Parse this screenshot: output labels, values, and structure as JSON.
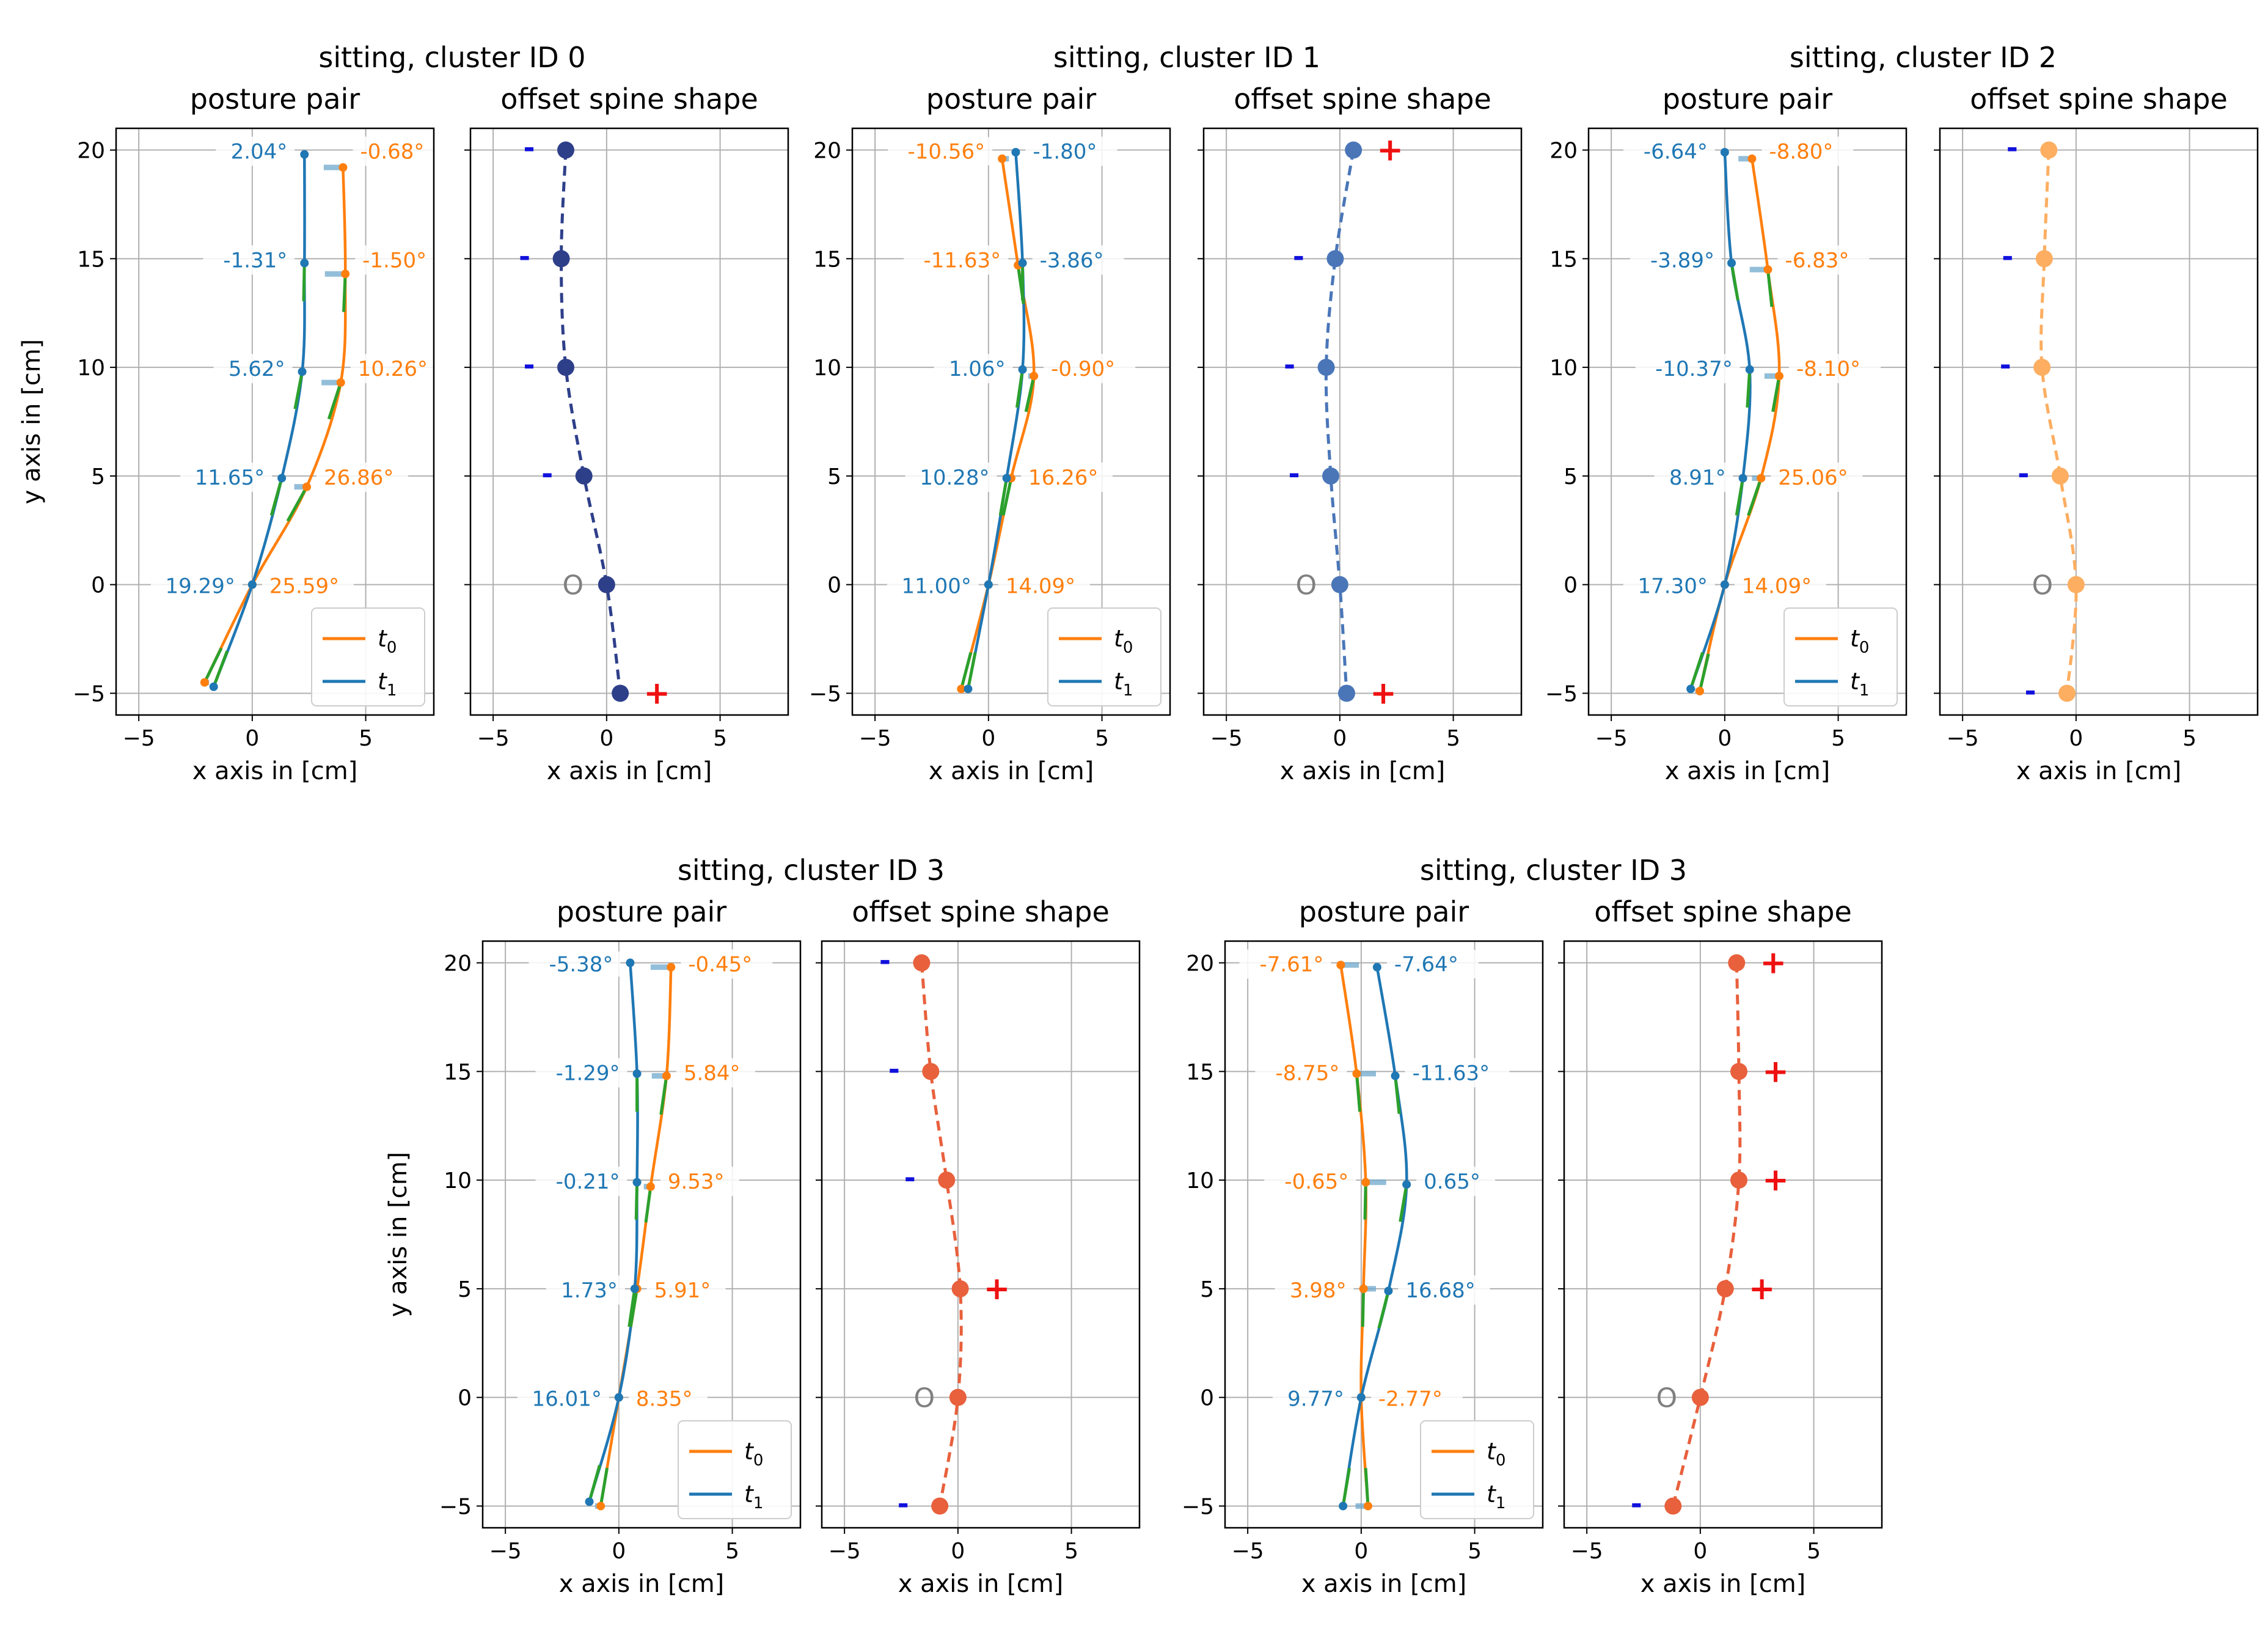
{
  "figure": {
    "name": "spine-posture-cluster-figure"
  },
  "colors": {
    "t0": "#ff7f0e",
    "t1": "#1f77b4",
    "segment": "#2ca02c",
    "connector": "#6fa8cc",
    "grid": "#b0b0b0",
    "plus": "#ee1111",
    "minus": "#1111dd",
    "origin": "#808080"
  },
  "common": {
    "pair_title": "posture pair",
    "shape_title": "offset spine shape",
    "xlabel": "x axis in [cm]",
    "ylabel": "y axis in [cm]",
    "legend": [
      "t0",
      "t1"
    ],
    "xlim": [
      -6,
      8
    ],
    "ylim": [
      -6,
      21
    ],
    "xticks": [
      -5,
      0,
      5
    ],
    "yticks": [
      -5,
      0,
      5,
      10,
      15,
      20
    ],
    "origin_symbol": "O",
    "plus_symbol": "+",
    "minus_symbol": "-"
  },
  "chart_data": [
    {
      "type": "line",
      "title": "sitting, cluster ID 0",
      "y_levels": [
        20,
        15,
        10,
        5,
        0,
        -5
      ],
      "t0_points": [
        [
          4.0,
          19.2
        ],
        [
          4.1,
          14.3
        ],
        [
          3.9,
          9.3
        ],
        [
          2.4,
          4.5
        ],
        [
          0,
          0
        ],
        [
          -2.1,
          -4.5
        ]
      ],
      "t1_points": [
        [
          2.3,
          19.8
        ],
        [
          2.3,
          14.8
        ],
        [
          2.2,
          9.8
        ],
        [
          1.3,
          4.9
        ],
        [
          0,
          0
        ],
        [
          -1.7,
          -4.7
        ]
      ],
      "t0_angles": [
        "-0.68°",
        "-1.50°",
        "10.26°",
        "26.86°",
        "25.59°",
        null
      ],
      "t1_angles": [
        "2.04°",
        "-1.31°",
        "5.62°",
        "11.65°",
        "19.29°",
        null
      ],
      "offset_x": [
        -1.8,
        -2.0,
        -1.8,
        -1.0,
        0.0,
        0.6
      ],
      "shape_marks": [
        "-",
        "-",
        "-",
        "-",
        "O",
        "+"
      ],
      "shape_color": "#2e3f8a"
    },
    {
      "type": "line",
      "title": "sitting, cluster ID 1",
      "y_levels": [
        20,
        15,
        10,
        5,
        0,
        -5
      ],
      "t0_points": [
        [
          0.6,
          19.6
        ],
        [
          1.3,
          14.7
        ],
        [
          2.0,
          9.6
        ],
        [
          1.0,
          4.9
        ],
        [
          0,
          0
        ],
        [
          -1.2,
          -4.8
        ]
      ],
      "t1_points": [
        [
          1.2,
          19.9
        ],
        [
          1.5,
          14.8
        ],
        [
          1.5,
          9.9
        ],
        [
          0.8,
          4.9
        ],
        [
          0,
          0
        ],
        [
          -0.9,
          -4.8
        ]
      ],
      "t0_angles": [
        "-10.56°",
        "-11.63°",
        "-0.90°",
        "16.26°",
        "14.09°",
        null
      ],
      "t1_angles": [
        "-1.80°",
        "-3.86°",
        "1.06°",
        "10.28°",
        "11.00°",
        null
      ],
      "offset_x": [
        0.6,
        -0.2,
        -0.6,
        -0.4,
        0.0,
        0.3
      ],
      "shape_marks": [
        "+",
        "-",
        "-",
        "-",
        "O",
        "+"
      ],
      "shape_color": "#4a76b8"
    },
    {
      "type": "line",
      "title": "sitting, cluster ID 2",
      "y_levels": [
        20,
        15,
        10,
        5,
        0,
        -5
      ],
      "t0_points": [
        [
          1.2,
          19.6
        ],
        [
          1.9,
          14.5
        ],
        [
          2.4,
          9.6
        ],
        [
          1.6,
          4.9
        ],
        [
          0,
          0
        ],
        [
          -1.1,
          -4.9
        ]
      ],
      "t1_points": [
        [
          0,
          19.9
        ],
        [
          0.3,
          14.8
        ],
        [
          1.1,
          9.9
        ],
        [
          0.8,
          4.9
        ],
        [
          0,
          0
        ],
        [
          -1.5,
          -4.8
        ]
      ],
      "t0_angles": [
        "-8.80°",
        "-6.83°",
        "-8.10°",
        "25.06°",
        "14.09°",
        null
      ],
      "t1_angles": [
        "-6.64°",
        "-3.89°",
        "-10.37°",
        "8.91°",
        "17.30°",
        null
      ],
      "offset_x": [
        -1.2,
        -1.4,
        -1.5,
        -0.7,
        0.0,
        -0.4
      ],
      "shape_marks": [
        "-",
        "-",
        "-",
        "-",
        "O",
        "-"
      ],
      "shape_color": "#fdae61"
    },
    {
      "type": "line",
      "title": "sitting, cluster ID 3",
      "y_levels": [
        20,
        15,
        10,
        5,
        0,
        -5
      ],
      "t0_points": [
        [
          2.3,
          19.8
        ],
        [
          2.1,
          14.8
        ],
        [
          1.4,
          9.7
        ],
        [
          0.8,
          5.0
        ],
        [
          0,
          0
        ],
        [
          -0.8,
          -5.0
        ]
      ],
      "t1_points": [
        [
          0.5,
          20.0
        ],
        [
          0.8,
          14.9
        ],
        [
          0.8,
          9.9
        ],
        [
          0.7,
          5.0
        ],
        [
          0,
          0
        ],
        [
          -1.3,
          -4.8
        ]
      ],
      "t0_angles": [
        "-0.45°",
        "5.84°",
        "9.53°",
        "5.91°",
        "8.35°",
        null
      ],
      "t1_angles": [
        "-5.38°",
        "-1.29°",
        "-0.21°",
        "1.73°",
        "16.01°",
        null
      ],
      "offset_x": [
        -1.6,
        -1.2,
        -0.5,
        0.1,
        0.0,
        -0.8
      ],
      "shape_marks": [
        "-",
        "-",
        "-",
        "+",
        "O",
        "-"
      ],
      "shape_color": "#e8603c"
    },
    {
      "type": "line",
      "title": "sitting, cluster ID 3",
      "y_levels": [
        20,
        15,
        10,
        5,
        0,
        -5
      ],
      "t0_points": [
        [
          -0.9,
          19.9
        ],
        [
          -0.2,
          14.9
        ],
        [
          0.2,
          9.9
        ],
        [
          0.1,
          5.0
        ],
        [
          0,
          0
        ],
        [
          0.3,
          -5.0
        ]
      ],
      "t1_points": [
        [
          0.7,
          19.8
        ],
        [
          1.5,
          14.8
        ],
        [
          2.0,
          9.8
        ],
        [
          1.2,
          4.9
        ],
        [
          0,
          0
        ],
        [
          -0.8,
          -5.0
        ]
      ],
      "t0_angles": [
        "-7.61°",
        "-8.75°",
        "-0.65°",
        "3.98°",
        "-2.77°",
        null
      ],
      "t1_angles": [
        "-7.64°",
        "-11.63°",
        "0.65°",
        "16.68°",
        "9.77°",
        null
      ],
      "offset_x": [
        1.6,
        1.7,
        1.7,
        1.1,
        0.0,
        -1.2
      ],
      "shape_marks": [
        "+",
        "+",
        "+",
        "+",
        "O",
        "-"
      ],
      "shape_color": "#e8603c"
    }
  ]
}
